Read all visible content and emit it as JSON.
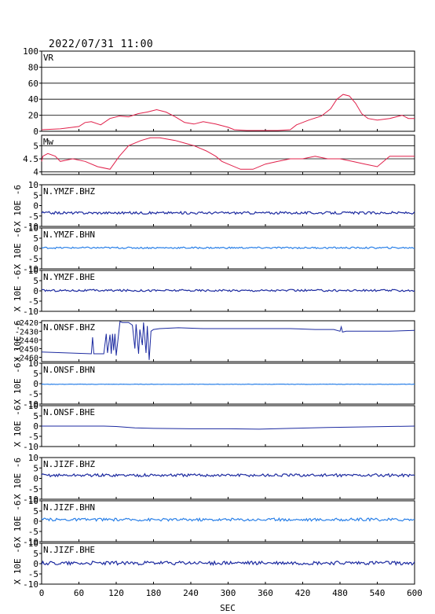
{
  "header": {
    "timestamp": "2022/07/31 11:00"
  },
  "colors": {
    "vr": "#e0204a",
    "mw": "#e0204a",
    "dark_blue": "#1c2aa0",
    "light_blue": "#2a80e8",
    "axis": "#000000"
  },
  "chart_data": {
    "type": "line",
    "x_axis": {
      "label": "SEC",
      "ticks": [
        0,
        60,
        120,
        180,
        240,
        300,
        360,
        420,
        480,
        540,
        600
      ],
      "range": [
        0,
        600
      ]
    },
    "panels": [
      {
        "name": "VR",
        "ylim": [
          0,
          100
        ],
        "yticks": [
          0,
          20,
          40,
          60,
          80,
          100
        ],
        "grid": true,
        "color": "vr",
        "points": [
          [
            0,
            2
          ],
          [
            30,
            3
          ],
          [
            60,
            6
          ],
          [
            70,
            11
          ],
          [
            80,
            12
          ],
          [
            95,
            8
          ],
          [
            110,
            16
          ],
          [
            125,
            19
          ],
          [
            140,
            18
          ],
          [
            155,
            22
          ],
          [
            170,
            24
          ],
          [
            185,
            27
          ],
          [
            200,
            24
          ],
          [
            215,
            18
          ],
          [
            230,
            11
          ],
          [
            245,
            9
          ],
          [
            260,
            12
          ],
          [
            280,
            9
          ],
          [
            300,
            5
          ],
          [
            310,
            2
          ],
          [
            330,
            1
          ],
          [
            360,
            1
          ],
          [
            380,
            1
          ],
          [
            400,
            2
          ],
          [
            410,
            8
          ],
          [
            430,
            14
          ],
          [
            450,
            19
          ],
          [
            465,
            28
          ],
          [
            475,
            40
          ],
          [
            485,
            46
          ],
          [
            495,
            44
          ],
          [
            505,
            35
          ],
          [
            515,
            22
          ],
          [
            525,
            16
          ],
          [
            540,
            14
          ],
          [
            560,
            16
          ],
          [
            580,
            20
          ],
          [
            590,
            16
          ],
          [
            600,
            16
          ]
        ]
      },
      {
        "name": "Mw",
        "ylim": [
          3.9,
          5.4
        ],
        "yticks": [
          4.0,
          4.5,
          5.0
        ],
        "grid": true,
        "color": "mw",
        "points": [
          [
            0,
            4.4
          ],
          [
            2,
            4.6
          ],
          [
            10,
            4.7
          ],
          [
            22,
            4.6
          ],
          [
            30,
            4.4
          ],
          [
            50,
            4.5
          ],
          [
            70,
            4.4
          ],
          [
            90,
            4.2
          ],
          [
            110,
            4.1
          ],
          [
            125,
            4.6
          ],
          [
            140,
            5.0
          ],
          [
            160,
            5.2
          ],
          [
            175,
            5.3
          ],
          [
            190,
            5.3
          ],
          [
            215,
            5.2
          ],
          [
            230,
            5.1
          ],
          [
            245,
            5.0
          ],
          [
            265,
            4.8
          ],
          [
            280,
            4.6
          ],
          [
            290,
            4.4
          ],
          [
            300,
            4.3
          ],
          [
            320,
            4.1
          ],
          [
            340,
            4.1
          ],
          [
            360,
            4.3
          ],
          [
            380,
            4.4
          ],
          [
            400,
            4.5
          ],
          [
            420,
            4.5
          ],
          [
            440,
            4.6
          ],
          [
            460,
            4.5
          ],
          [
            480,
            4.5
          ],
          [
            500,
            4.4
          ],
          [
            520,
            4.3
          ],
          [
            540,
            4.2
          ],
          [
            560,
            4.6
          ],
          [
            580,
            4.6
          ],
          [
            600,
            4.6
          ]
        ]
      },
      {
        "name": "N.YMZF.BHZ",
        "ylim": [
          -10,
          10
        ],
        "yticks": [
          -10,
          -5,
          0,
          5,
          10
        ],
        "color": "dark_blue",
        "ylabel": "X 10E -6",
        "baseline": -3.5,
        "noise": 0.6
      },
      {
        "name": "N.YMZF.BHN",
        "ylim": [
          -10,
          10
        ],
        "yticks": [
          -10,
          -5,
          0,
          5,
          10
        ],
        "color": "light_blue",
        "ylabel": "X 10E -6",
        "baseline": 0.3,
        "noise": 0.4
      },
      {
        "name": "N.YMZF.BHE",
        "ylim": [
          -10,
          10
        ],
        "yticks": [
          -10,
          -5,
          0,
          5,
          10
        ],
        "color": "dark_blue",
        "ylabel": "X 10E -6",
        "baseline": 0.2,
        "noise": 0.5
      },
      {
        "name": "N.ONSF.BHZ",
        "ylim": [
          -2465,
          -2418
        ],
        "yticks": [
          -2460,
          -2450,
          -2440,
          -2430,
          -2420
        ],
        "color": "dark_blue",
        "ylabel": "X 10E -6",
        "points": [
          [
            0,
            -2454
          ],
          [
            80,
            -2456
          ],
          [
            82,
            -2437
          ],
          [
            84,
            -2456
          ],
          [
            100,
            -2456
          ],
          [
            104,
            -2433
          ],
          [
            106,
            -2455
          ],
          [
            110,
            -2434
          ],
          [
            112,
            -2456
          ],
          [
            114,
            -2433
          ],
          [
            116,
            -2452
          ],
          [
            118,
            -2433
          ],
          [
            120,
            -2458
          ],
          [
            126,
            -2419
          ],
          [
            130,
            -2420
          ],
          [
            140,
            -2420
          ],
          [
            146,
            -2423
          ],
          [
            150,
            -2450
          ],
          [
            152,
            -2422
          ],
          [
            156,
            -2456
          ],
          [
            158,
            -2428
          ],
          [
            162,
            -2446
          ],
          [
            164,
            -2420
          ],
          [
            168,
            -2455
          ],
          [
            170,
            -2424
          ],
          [
            173,
            -2463
          ],
          [
            176,
            -2430
          ],
          [
            180,
            -2428
          ],
          [
            190,
            -2427
          ],
          [
            220,
            -2426
          ],
          [
            260,
            -2427
          ],
          [
            300,
            -2427
          ],
          [
            350,
            -2427
          ],
          [
            400,
            -2427
          ],
          [
            440,
            -2428
          ],
          [
            470,
            -2428
          ],
          [
            480,
            -2430
          ],
          [
            482,
            -2425
          ],
          [
            484,
            -2431
          ],
          [
            490,
            -2430
          ],
          [
            520,
            -2430
          ],
          [
            560,
            -2430
          ],
          [
            600,
            -2429
          ]
        ]
      },
      {
        "name": "N.ONSF.BHN",
        "ylim": [
          -10,
          10
        ],
        "yticks": [
          -10,
          -5,
          0,
          5,
          10
        ],
        "color": "light_blue",
        "ylabel": "X 10E -6",
        "baseline": -0.3,
        "noise": 0.1
      },
      {
        "name": "N.ONSF.BHE",
        "ylim": [
          -10,
          10
        ],
        "yticks": [
          -10,
          -5,
          0,
          5,
          10
        ],
        "color": "dark_blue",
        "ylabel": "X 10E -6",
        "points": [
          [
            0,
            0
          ],
          [
            100,
            0
          ],
          [
            120,
            -0.2
          ],
          [
            150,
            -0.9
          ],
          [
            180,
            -1.1
          ],
          [
            240,
            -1.3
          ],
          [
            300,
            -1.3
          ],
          [
            350,
            -1.5
          ],
          [
            400,
            -1.1
          ],
          [
            460,
            -0.7
          ],
          [
            520,
            -0.4
          ],
          [
            600,
            0
          ]
        ]
      },
      {
        "name": "N.JIZF.BHZ",
        "ylim": [
          -10,
          10
        ],
        "yticks": [
          -10,
          -5,
          0,
          5,
          10
        ],
        "color": "dark_blue",
        "ylabel": "X 10E -6",
        "baseline": 1.5,
        "noise": 0.7
      },
      {
        "name": "N.JIZF.BHN",
        "ylim": [
          -10,
          10
        ],
        "yticks": [
          -10,
          -5,
          0,
          5,
          10
        ],
        "color": "light_blue",
        "ylabel": "X 10E -6",
        "baseline": 0.8,
        "noise": 0.7
      },
      {
        "name": "N.JIZF.BHE",
        "ylim": [
          -10,
          10
        ],
        "yticks": [
          -10,
          -5,
          0,
          5,
          10
        ],
        "color": "dark_blue",
        "ylabel": "X 10E -6",
        "baseline": 0.3,
        "noise": 0.9
      }
    ]
  }
}
